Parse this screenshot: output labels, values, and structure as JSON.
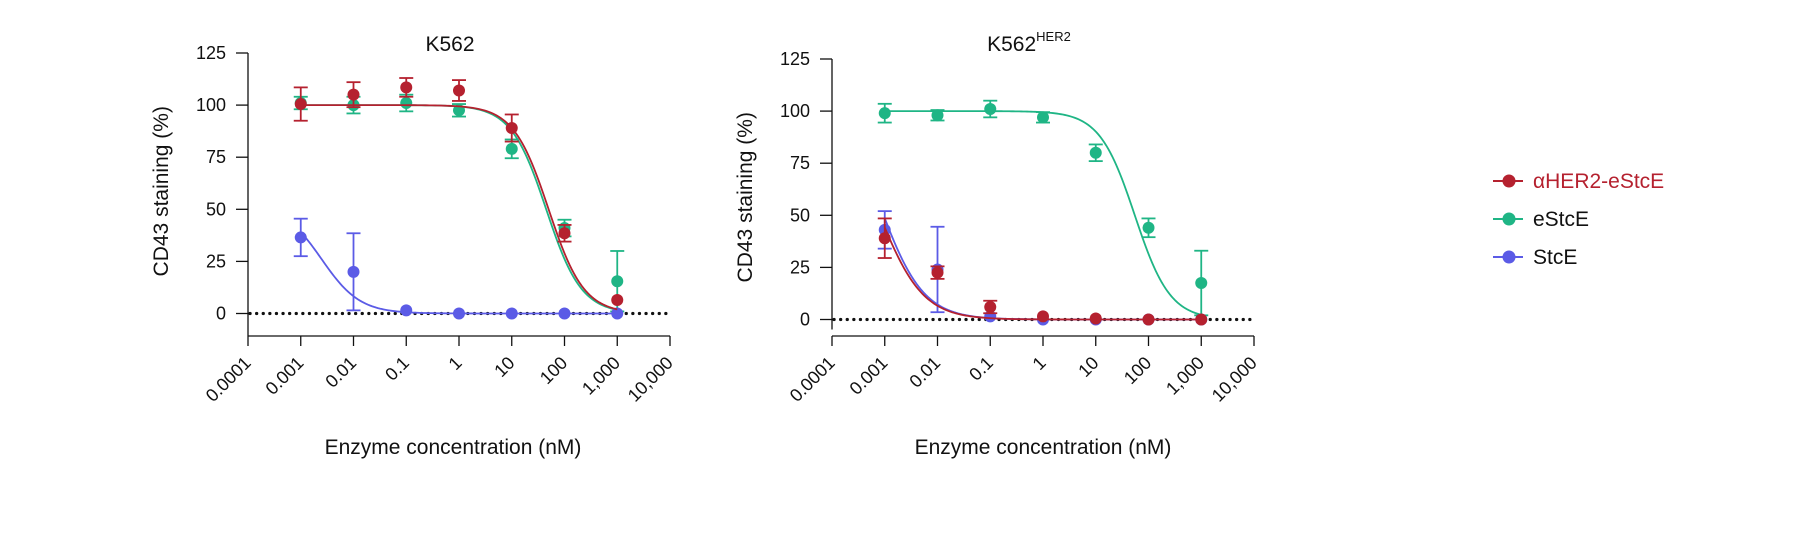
{
  "legend": {
    "position": "right",
    "entries": [
      {
        "series_key": "aher2",
        "label": "αHER2-eStcE",
        "color": "#b5212f",
        "text_color": "#b5212f"
      },
      {
        "series_key": "estce",
        "label": "eStcE",
        "color": "#1fb585",
        "text_color": "#111111"
      },
      {
        "series_key": "stce",
        "label": "StcE",
        "color": "#5b5be6",
        "text_color": "#111111"
      }
    ]
  },
  "chart_data": [
    {
      "type": "scatter",
      "title": "K562",
      "title_superscript": "",
      "xlabel": "Enzyme concentration (nM)",
      "ylabel": "CD43 staining (%)",
      "x_scale": "log10",
      "xlim": [
        0.0001,
        10000
      ],
      "ylim": [
        -10,
        125
      ],
      "x_ticks": [
        0.0001,
        0.001,
        0.01,
        0.1,
        1,
        10,
        100,
        1000,
        10000
      ],
      "x_tick_labels": [
        "0.0001",
        "0.001",
        "0.01",
        "0.1",
        "1",
        "10",
        "100",
        "1,000",
        "10,000"
      ],
      "y_ticks": [
        0,
        25,
        50,
        75,
        100,
        125
      ],
      "y_tick_labels": [
        "0",
        "25",
        "50",
        "75",
        "100",
        "125"
      ],
      "reference_line": {
        "y": 0,
        "style": "dotted"
      },
      "series": [
        {
          "key": "estce",
          "name": "eStcE",
          "color": "#1fb585",
          "x": [
            0.001,
            0.01,
            0.1,
            1,
            10,
            100,
            1000
          ],
          "y": [
            101,
            100,
            101,
            97.5,
            79,
            41,
            15.5
          ],
          "err": [
            3,
            4,
            4,
            3,
            4.5,
            4,
            14.5
          ],
          "fit": {
            "top": 100,
            "bottom": 0,
            "ec50": 45,
            "hill": 1.3
          }
        },
        {
          "key": "stce",
          "name": "StcE",
          "color": "#5b5be6",
          "x": [
            0.001,
            0.01,
            0.1,
            1,
            10,
            100,
            1000
          ],
          "y": [
            36.5,
            20,
            1.5,
            0,
            0,
            0,
            0
          ],
          "err": [
            9,
            18.5,
            0,
            0,
            0,
            0,
            0
          ],
          "fit": {
            "top": 52,
            "bottom": 0,
            "ec50": 0.0025,
            "hill": 1.2
          }
        },
        {
          "key": "aher2",
          "name": "αHER2-eStcE",
          "color": "#b5212f",
          "x": [
            0.001,
            0.01,
            0.1,
            1,
            10,
            100,
            1000
          ],
          "y": [
            100.5,
            105,
            108.5,
            107,
            89,
            38.5,
            6.5
          ],
          "err": [
            8,
            6,
            4.5,
            5,
            6.5,
            4,
            0
          ],
          "fit": {
            "top": 100,
            "bottom": 0,
            "ec50": 50,
            "hill": 1.3
          }
        }
      ]
    },
    {
      "type": "scatter",
      "title": "K562",
      "title_superscript": "HER2",
      "xlabel": "Enzyme concentration (nM)",
      "ylabel": "CD43 staining (%)",
      "x_scale": "log10",
      "xlim": [
        0.0001,
        10000
      ],
      "ylim": [
        -5,
        125
      ],
      "x_ticks": [
        0.0001,
        0.001,
        0.01,
        0.1,
        1,
        10,
        100,
        1000,
        10000
      ],
      "x_tick_labels": [
        "0.0001",
        "0.001",
        "0.01",
        "0.1",
        "1",
        "10",
        "100",
        "1,000",
        "10,000"
      ],
      "y_ticks": [
        0,
        25,
        50,
        75,
        100,
        125
      ],
      "y_tick_labels": [
        "0",
        "25",
        "50",
        "75",
        "100",
        "125"
      ],
      "reference_line": {
        "y": 0,
        "style": "dotted"
      },
      "series": [
        {
          "key": "estce",
          "name": "eStcE",
          "color": "#1fb585",
          "x": [
            0.001,
            0.01,
            0.1,
            1,
            10,
            100,
            1000
          ],
          "y": [
            99,
            98,
            101,
            97,
            80,
            44,
            17.5
          ],
          "err": [
            4.5,
            2.5,
            4,
            2.5,
            4,
            4.5,
            15.5
          ],
          "fit": {
            "top": 100,
            "bottom": 0,
            "ec50": 55,
            "hill": 1.3
          }
        },
        {
          "key": "stce",
          "name": "StcE",
          "color": "#5b5be6",
          "x": [
            0.001,
            0.01,
            0.1,
            1,
            10,
            100,
            1000
          ],
          "y": [
            43,
            24,
            1.5,
            0,
            0,
            0,
            0
          ],
          "err": [
            9,
            20.5,
            0,
            0,
            0,
            0,
            0
          ],
          "fit": {
            "top": 110,
            "bottom": 0,
            "ec50": 0.0008,
            "hill": 1.05
          }
        },
        {
          "key": "aher2",
          "name": "αHER2-eStcE",
          "color": "#b5212f",
          "x": [
            0.001,
            0.01,
            0.1,
            1,
            10,
            100,
            1000
          ],
          "y": [
            39,
            22.5,
            6,
            1.5,
            0.5,
            0,
            0
          ],
          "err": [
            9.5,
            3,
            3,
            0,
            0,
            0,
            0
          ],
          "fit": {
            "top": 100,
            "bottom": 0,
            "ec50": 0.0008,
            "hill": 1.05
          }
        }
      ]
    }
  ]
}
